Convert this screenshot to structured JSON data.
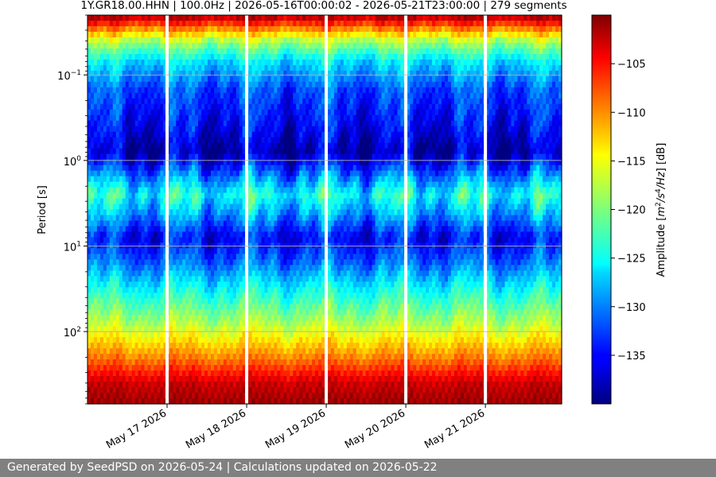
{
  "footer": {
    "text": "Generated by SeedPSD on 2026-05-24 | Calculations updated on 2026-05-22"
  },
  "chart_data": {
    "type": "heatmap",
    "title": "1Y.GR18.00.HHN | 100.0Hz | 2026-05-16T00:00:02 - 2026-05-21T23:00:00 | 279 segments",
    "xlabel": "",
    "ylabel": "Period [s]",
    "x_ticks": [
      "May 17 2026",
      "May 18 2026",
      "May 19 2026",
      "May 20 2026",
      "May 21 2026"
    ],
    "xlim": [
      "2026-05-16T00:00:02",
      "2026-05-21T23:00:00"
    ],
    "y_scale": "log",
    "y_inverted": true,
    "ylim": [
      0.02,
      700
    ],
    "y_ticks": [
      {
        "value": 0.1,
        "base": "10",
        "exp": "−1"
      },
      {
        "value": 1,
        "base": "10",
        "exp": "0"
      },
      {
        "value": 10,
        "base": "10",
        "exp": "1"
      },
      {
        "value": 100,
        "base": "10",
        "exp": "2"
      }
    ],
    "grid": true,
    "colormap": "jet",
    "colorbar": {
      "label_prefix": "Amplitude [",
      "label_m": "m",
      "label_sup1": "2",
      "label_mid": "/s",
      "label_sup2": "4",
      "label_hz": "/Hz",
      "label_suffix": "] [dB]",
      "range": [
        -140,
        -100
      ],
      "ticks": [
        "−105",
        "−110",
        "−115",
        "−120",
        "−125",
        "−130",
        "−135"
      ],
      "tick_values": [
        -105,
        -110,
        -115,
        -120,
        -125,
        -130,
        -135
      ]
    },
    "data_gaps": [
      "2026-05-17T00:00",
      "2026-05-18T00:00",
      "2026-05-19T00:00",
      "2026-05-20T00:00",
      "2026-05-21T00:00"
    ],
    "period_profile_db": [
      {
        "period": 0.02,
        "db": -101
      },
      {
        "period": 0.04,
        "db": -118
      },
      {
        "period": 0.07,
        "db": -126
      },
      {
        "period": 0.15,
        "db": -132
      },
      {
        "period": 0.4,
        "db": -135
      },
      {
        "period": 0.8,
        "db": -138
      },
      {
        "period": 1.5,
        "db": -130
      },
      {
        "period": 2.5,
        "db": -124
      },
      {
        "period": 4,
        "db": -128
      },
      {
        "period": 8,
        "db": -135
      },
      {
        "period": 15,
        "db": -131
      },
      {
        "period": 30,
        "db": -125
      },
      {
        "period": 80,
        "db": -118
      },
      {
        "period": 200,
        "db": -110
      },
      {
        "period": 400,
        "db": -103
      },
      {
        "period": 700,
        "db": -101
      }
    ]
  }
}
